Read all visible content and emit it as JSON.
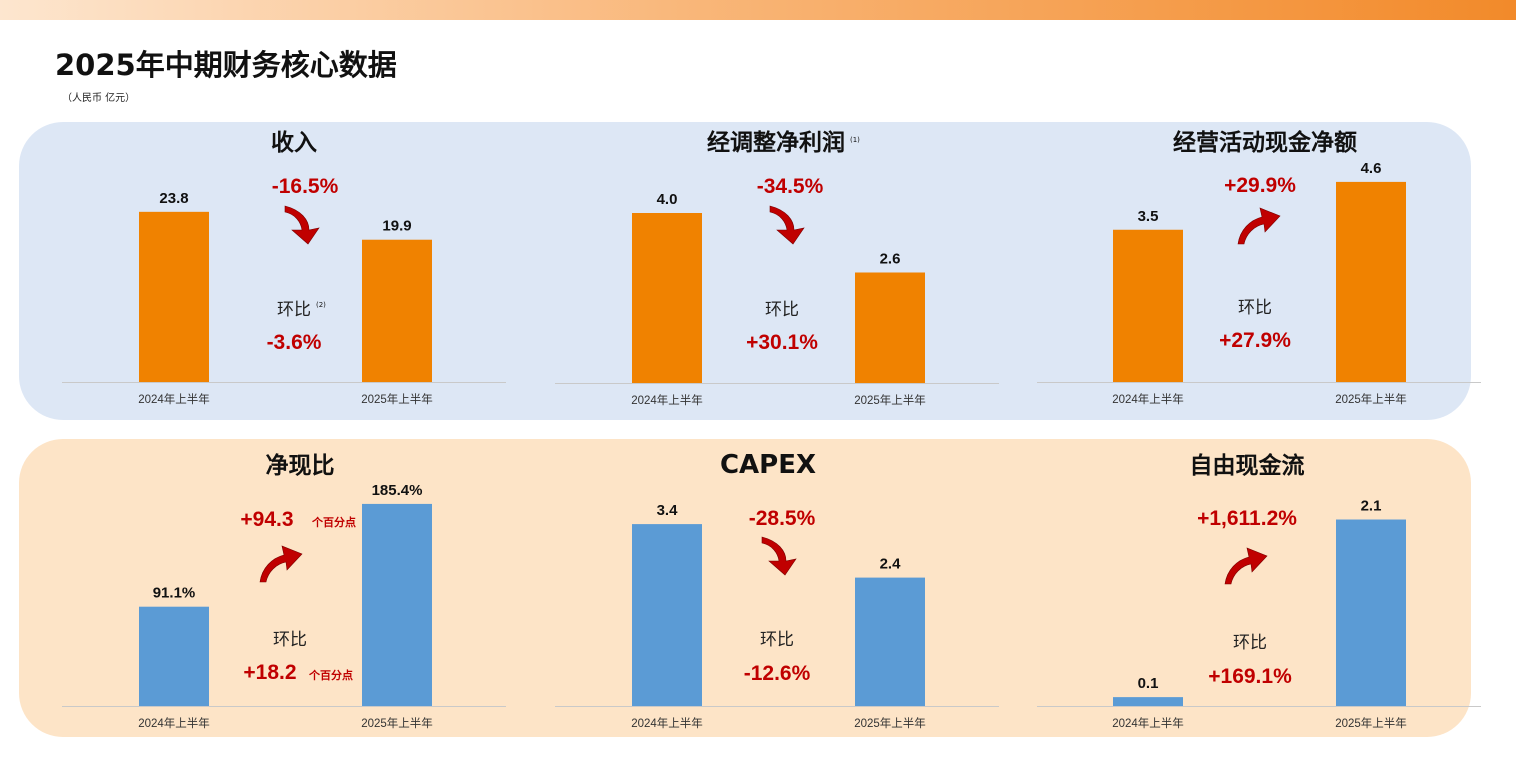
{
  "page": {
    "title": "2025年中期财务核心数据",
    "unit_note": "（人民币 亿元）"
  },
  "colors": {
    "orange_bar": "#f08200",
    "blue_bar": "#5b9bd5",
    "change_red": "#c00000",
    "top_panel_bg": "#dde7f5",
    "bottom_panel_bg": "#fde4c7"
  },
  "chart_data": [
    {
      "type": "bar",
      "title": "收入",
      "note_mark": "",
      "categories": [
        "2024年上半年",
        "2025年上半年"
      ],
      "values": [
        23.8,
        19.9
      ],
      "value_labels": [
        "23.8",
        "19.9"
      ],
      "change_yoy": "-16.5%",
      "change_yoy_unit": "",
      "change_direction": "down",
      "qoq_label": "环比",
      "qoq_note_mark": "(2)",
      "qoq_value": "-3.6%",
      "qoq_unit": "",
      "bar_color": "#f08200"
    },
    {
      "type": "bar",
      "title": "经调整净利润",
      "note_mark": "(1)",
      "categories": [
        "2024年上半年",
        "2025年上半年"
      ],
      "values": [
        4.0,
        2.6
      ],
      "value_labels": [
        "4.0",
        "2.6"
      ],
      "change_yoy": "-34.5%",
      "change_yoy_unit": "",
      "change_direction": "down",
      "qoq_label": "环比",
      "qoq_note_mark": "",
      "qoq_value": "+30.1%",
      "qoq_unit": "",
      "bar_color": "#f08200"
    },
    {
      "type": "bar",
      "title": "经营活动现金净额",
      "note_mark": "",
      "categories": [
        "2024年上半年",
        "2025年上半年"
      ],
      "values": [
        3.5,
        4.6
      ],
      "value_labels": [
        "3.5",
        "4.6"
      ],
      "change_yoy": "+29.9%",
      "change_yoy_unit": "",
      "change_direction": "up",
      "qoq_label": "环比",
      "qoq_note_mark": "",
      "qoq_value": "+27.9%",
      "qoq_unit": "",
      "bar_color": "#f08200"
    },
    {
      "type": "bar",
      "title": "净现比",
      "note_mark": "",
      "categories": [
        "2024年上半年",
        "2025年上半年"
      ],
      "values": [
        91.1,
        185.4
      ],
      "value_labels": [
        "91.1%",
        "185.4%"
      ],
      "change_yoy": "+94.3",
      "change_yoy_unit": "个百分点",
      "change_direction": "up",
      "qoq_label": "环比",
      "qoq_note_mark": "",
      "qoq_value": "+18.2",
      "qoq_unit": "个百分点",
      "bar_color": "#5b9bd5"
    },
    {
      "type": "bar",
      "title": "CAPEX",
      "note_mark": "",
      "categories": [
        "2024年上半年",
        "2025年上半年"
      ],
      "values": [
        3.4,
        2.4
      ],
      "value_labels": [
        "3.4",
        "2.4"
      ],
      "change_yoy": "-28.5%",
      "change_yoy_unit": "",
      "change_direction": "down",
      "qoq_label": "环比",
      "qoq_note_mark": "",
      "qoq_value": "-12.6%",
      "qoq_unit": "",
      "bar_color": "#5b9bd5"
    },
    {
      "type": "bar",
      "title": "自由现金流",
      "note_mark": "",
      "categories": [
        "2024年上半年",
        "2025年上半年"
      ],
      "values": [
        0.1,
        2.1
      ],
      "value_labels": [
        "0.1",
        "2.1"
      ],
      "change_yoy": "+1,611.2%",
      "change_yoy_unit": "",
      "change_direction": "up",
      "qoq_label": "环比",
      "qoq_note_mark": "",
      "qoq_value": "+169.1%",
      "qoq_unit": "",
      "bar_color": "#5b9bd5"
    }
  ]
}
